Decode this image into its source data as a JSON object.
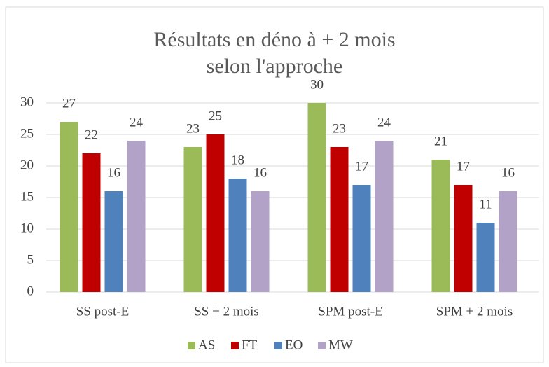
{
  "chart_data": {
    "type": "bar",
    "title": "Résultats en déno à + 2 mois selon l'approche",
    "categories": [
      "SS post-E",
      "SS + 2 mois",
      "SPM post-E",
      "SPM + 2 mois"
    ],
    "series": [
      {
        "name": "AS",
        "color": "#9bbb59",
        "values": [
          27,
          23,
          30,
          21
        ]
      },
      {
        "name": "FT",
        "color": "#c00000",
        "values": [
          22,
          25,
          23,
          17
        ]
      },
      {
        "name": "EO",
        "color": "#4f81bd",
        "values": [
          16,
          18,
          17,
          11
        ]
      },
      {
        "name": "MW",
        "color": "#b3a2c7",
        "values": [
          24,
          16,
          24,
          16
        ]
      }
    ],
    "ylim": [
      0,
      30
    ],
    "yticks": [
      0,
      5,
      10,
      15,
      20,
      25,
      30
    ],
    "grid": true,
    "legend": "bottom"
  }
}
